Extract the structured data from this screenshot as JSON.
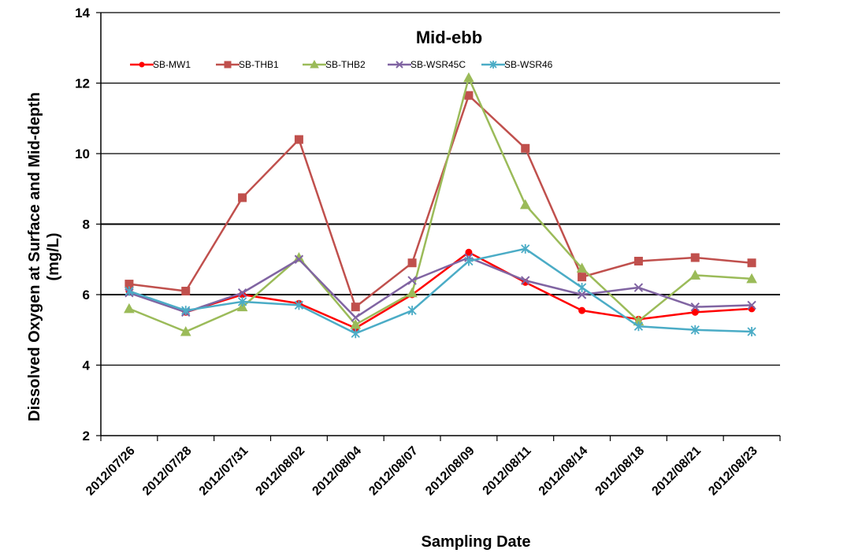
{
  "chart_data": {
    "type": "line",
    "title": "Mid-ebb",
    "xlabel": "Sampling Date",
    "ylabel": "Dissolved Oxygen at Surface and Mid-depth (mg/L)",
    "ylabel_lines": [
      "Dissolved Oxygen at Surface and Mid-depth",
      "(mg/L)"
    ],
    "ylim": [
      2,
      14
    ],
    "yticks": [
      2,
      4,
      6,
      8,
      10,
      12,
      14
    ],
    "categories": [
      "2012/07/26",
      "2012/07/28",
      "2012/07/31",
      "2012/08/02",
      "2012/08/04",
      "2012/08/07",
      "2012/08/09",
      "2012/08/11",
      "2012/08/14",
      "2012/08/18",
      "2012/08/21",
      "2012/08/23"
    ],
    "grid": "horizontal major gridlines",
    "legend_position": "top",
    "series": [
      {
        "name": "SB-MW1",
        "color": "#ff0000",
        "marker": "circle",
        "values": [
          6.1,
          5.5,
          6.0,
          5.75,
          5.05,
          6.0,
          7.2,
          6.35,
          5.55,
          5.3,
          5.5,
          5.6
        ]
      },
      {
        "name": "SB-THB1",
        "color": "#c0504d",
        "marker": "square",
        "values": [
          6.3,
          6.1,
          8.75,
          10.4,
          5.65,
          6.9,
          11.65,
          10.15,
          6.5,
          6.95,
          7.05,
          6.9
        ]
      },
      {
        "name": "SB-THB2",
        "color": "#9bbb59",
        "marker": "triangle",
        "values": [
          5.6,
          4.95,
          5.65,
          7.05,
          5.15,
          6.05,
          12.15,
          8.55,
          6.75,
          5.25,
          6.55,
          6.45
        ]
      },
      {
        "name": "SB-WSR45C",
        "color": "#8064a2",
        "marker": "x",
        "values": [
          6.05,
          5.5,
          6.05,
          7.0,
          5.35,
          6.4,
          7.05,
          6.4,
          6.0,
          6.2,
          5.65,
          5.7
        ]
      },
      {
        "name": "SB-WSR46",
        "color": "#4bacc6",
        "marker": "star",
        "values": [
          6.1,
          5.55,
          5.8,
          5.7,
          4.9,
          5.55,
          6.95,
          7.3,
          6.2,
          5.1,
          5.0,
          4.95
        ]
      }
    ]
  }
}
